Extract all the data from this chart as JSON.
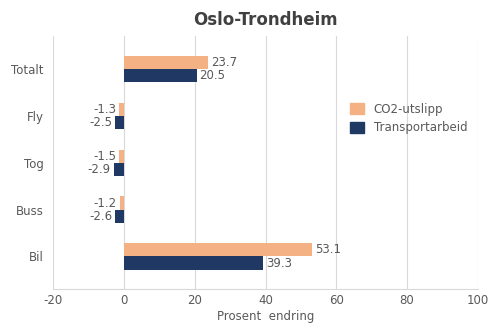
{
  "title": "Oslo-Trondheim",
  "categories": [
    "Bil",
    "Buss",
    "Tog",
    "Fly",
    "Totalt"
  ],
  "co2_values": [
    53.1,
    -1.2,
    -1.5,
    -1.3,
    23.7
  ],
  "transport_values": [
    39.3,
    -2.6,
    -2.9,
    -2.5,
    20.5
  ],
  "co2_color": "#f4b183",
  "transport_color": "#1f3864",
  "xlim": [
    -20,
    100
  ],
  "xticks": [
    -20,
    0,
    20,
    40,
    60,
    80,
    100
  ],
  "xlabel": "Prosent  endring",
  "legend_labels": [
    "CO2-utslipp",
    "Transportarbeid"
  ],
  "bar_height": 0.28,
  "label_fontsize": 8.5,
  "title_fontsize": 12,
  "axis_fontsize": 8.5,
  "text_color": "#595959",
  "title_color": "#404040",
  "grid_color": "#d9d9d9",
  "bg_color": "#ffffff"
}
